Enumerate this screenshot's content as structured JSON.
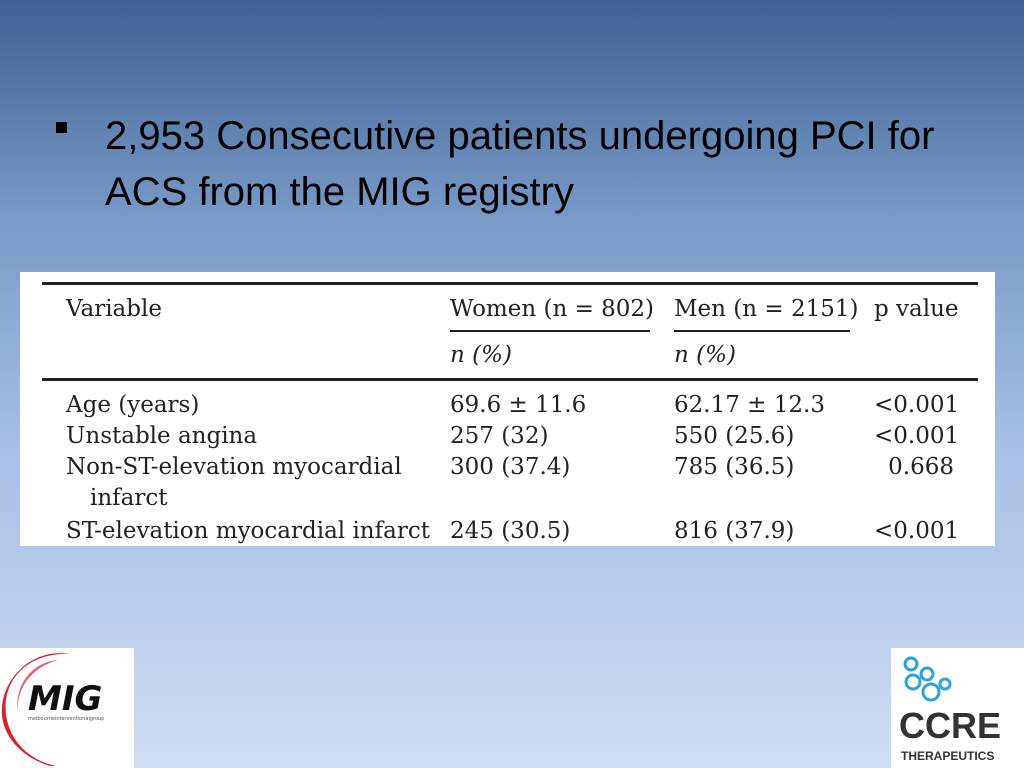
{
  "slide": {
    "bullet": "2,953 Consecutive patients undergoing PCI for ACS from the MIG registry"
  },
  "table": {
    "headers": {
      "variable": "Variable",
      "women": "Women (n = 802)",
      "men": "Men (n = 2151)",
      "p": "p value",
      "women_sub": "n (%)",
      "men_sub": "n (%)"
    },
    "rows": [
      {
        "variable": "Age (years)",
        "women": "69.6 ± 11.6",
        "men": "62.17 ± 12.3",
        "p": "<0.001"
      },
      {
        "variable": "Unstable angina",
        "women": "257 (32)",
        "men": "550 (25.6)",
        "p": "<0.001"
      },
      {
        "variable": "Non-ST-elevation myocardial",
        "variable_cont": "infarct",
        "women": "300 (37.4)",
        "men": "785 (36.5)",
        "p": "0.668"
      },
      {
        "variable": "ST-elevation myocardial infarct",
        "women": "245 (30.5)",
        "men": "816 (37.9)",
        "p": "<0.001"
      }
    ]
  },
  "logos": {
    "left": {
      "text": "MIG",
      "tagline": "melbourneinterventionalgroup"
    },
    "right": {
      "text": "CCRE",
      "sub": "THERAPEUTICS"
    }
  },
  "colors": {
    "logo_red": "#d9222a",
    "logo_blue": "#2aa5d8",
    "ccre_text": "#333333"
  }
}
